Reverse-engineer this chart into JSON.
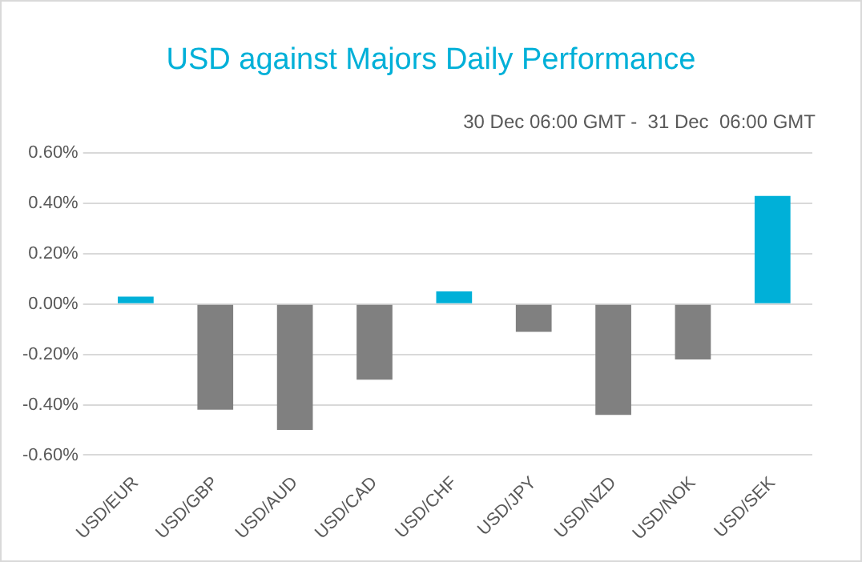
{
  "chart_data": {
    "type": "bar",
    "title": "USD against Majors Daily Performance",
    "subtitle": "30 Dec 06:00 GMT -  31 Dec  06:00 GMT",
    "categories": [
      "USD/EUR",
      "USD/GBP",
      "USD/AUD",
      "USD/CAD",
      "USD/CHF",
      "USD/JPY",
      "USD/NZD",
      "USD/NOK",
      "USD/SEK"
    ],
    "values": [
      0.03,
      -0.42,
      -0.5,
      -0.3,
      0.05,
      -0.11,
      -0.44,
      -0.22,
      0.43
    ],
    "colors": [
      "#00b0d8",
      "#808080",
      "#808080",
      "#808080",
      "#00b0d8",
      "#808080",
      "#808080",
      "#808080",
      "#00b0d8"
    ],
    "ylim": [
      -0.6,
      0.6
    ],
    "yticks": [
      {
        "value": -0.6,
        "label": "-0.60%"
      },
      {
        "value": -0.4,
        "label": "-0.40%"
      },
      {
        "value": -0.2,
        "label": "-0.20%"
      },
      {
        "value": 0,
        "label": "0.00%"
      },
      {
        "value": 0.2,
        "label": "0.20%"
      },
      {
        "value": 0.4,
        "label": "0.40%"
      },
      {
        "value": 0.6,
        "label": "0.60%"
      }
    ],
    "grid": "y",
    "legend": false
  }
}
